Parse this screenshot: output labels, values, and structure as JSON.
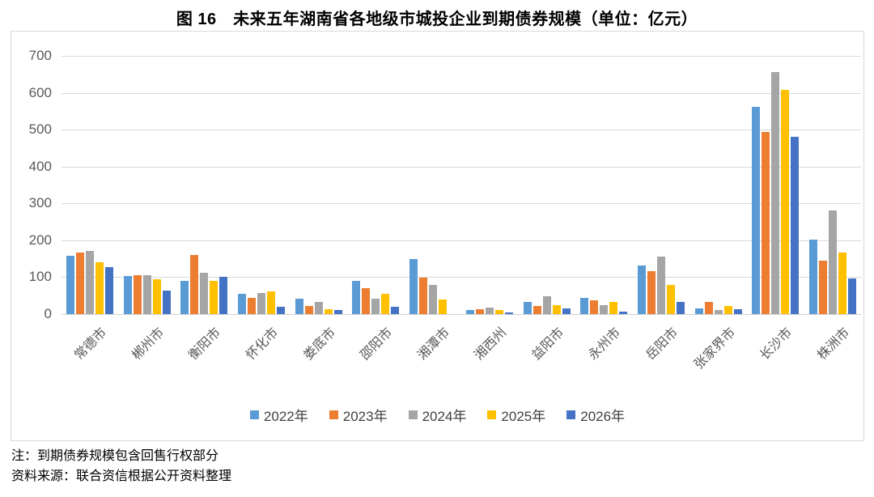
{
  "page": {
    "title": "图 16　未来五年湖南省各地级市城投企业到期债券规模（单位：亿元）",
    "note_line1": "注：到期债券规模包含回售行权部分",
    "note_line2": "资料来源：联合资信根据公开资料整理"
  },
  "chart_data": {
    "type": "bar",
    "title": "图 16　未来五年湖南省各地级市城投企业到期债券规模（单位：亿元）",
    "unit": "亿元",
    "categories": [
      "常德市",
      "郴州市",
      "衡阳市",
      "怀化市",
      "娄底市",
      "邵阳市",
      "湘潭市",
      "湘西州",
      "益阳市",
      "永州市",
      "岳阳市",
      "张家界市",
      "长沙市",
      "株洲市"
    ],
    "series": [
      {
        "name": "2022年",
        "color": "#5B9BD5",
        "values": [
          157,
          103,
          90,
          55,
          42,
          90,
          150,
          11,
          34,
          44,
          131,
          16,
          561,
          203
        ]
      },
      {
        "name": "2023年",
        "color": "#ED7D31",
        "values": [
          167,
          106,
          160,
          43,
          23,
          70,
          98,
          13,
          21,
          38,
          116,
          33,
          494,
          144
        ]
      },
      {
        "name": "2024年",
        "color": "#A5A5A5",
        "values": [
          172,
          105,
          113,
          58,
          33,
          42,
          80,
          17,
          49,
          25,
          156,
          10,
          656,
          280
        ]
      },
      {
        "name": "2025年",
        "color": "#FFC000",
        "values": [
          141,
          95,
          90,
          62,
          13,
          54,
          39,
          10,
          25,
          34,
          79,
          21,
          608,
          167
        ]
      },
      {
        "name": "2026年",
        "color": "#4472C4",
        "values": [
          127,
          63,
          102,
          20,
          11,
          20,
          0,
          5,
          15,
          6,
          34,
          14,
          480,
          96
        ]
      }
    ],
    "ylim": [
      0,
      700
    ],
    "yticks": [
      0,
      100,
      200,
      300,
      400,
      500,
      600,
      700
    ],
    "grid": true,
    "legend_position": "bottom",
    "axis_text_color": "#595959",
    "gridline_color": "#D9D9D9"
  }
}
